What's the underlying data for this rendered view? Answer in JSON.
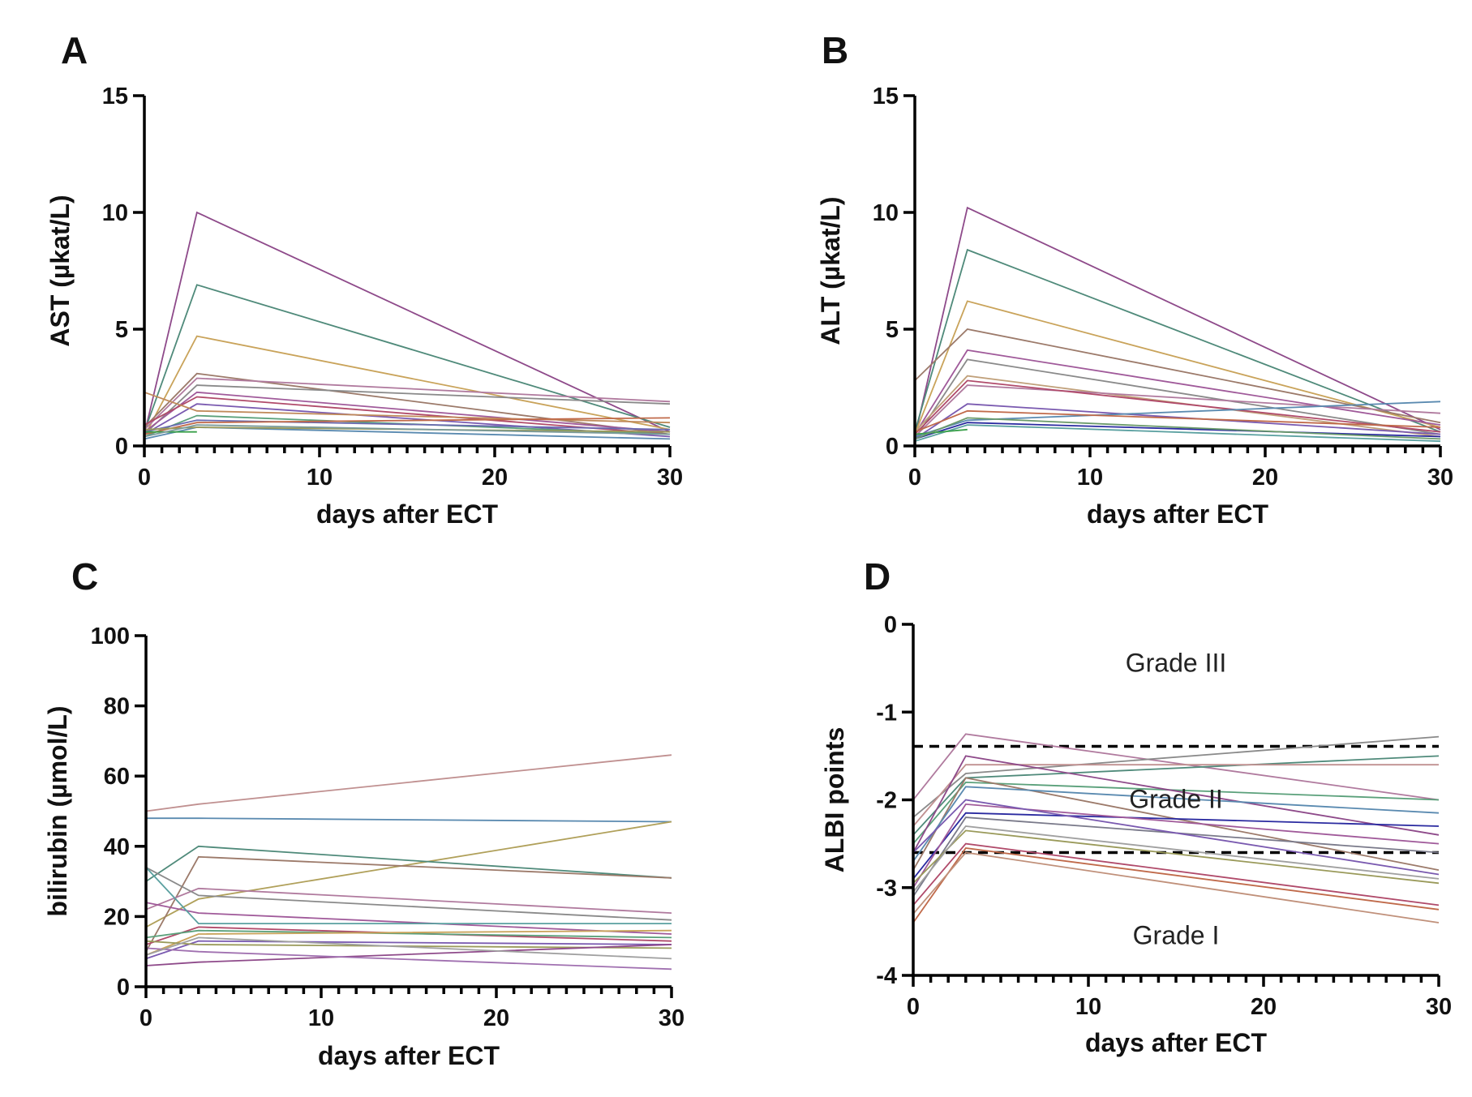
{
  "chart_data": [
    {
      "panel": "A",
      "type": "line",
      "xlabel": "days after ECT",
      "ylabel": "AST (µkat/L)",
      "xlim": [
        0,
        30
      ],
      "ylim": [
        0,
        15
      ],
      "x_ticks": [
        0,
        10,
        20,
        30
      ],
      "y_ticks": [
        0,
        5,
        10,
        15
      ],
      "x": [
        0,
        3,
        30
      ],
      "series": [
        {
          "color": "#8e4a8a",
          "values": [
            0.5,
            10.0,
            0.6
          ]
        },
        {
          "color": "#4f8a7a",
          "values": [
            0.6,
            6.9,
            0.8
          ]
        },
        {
          "color": "#c9a35a",
          "values": [
            0.4,
            4.7,
            0.7
          ]
        },
        {
          "color": "#9c7a6a",
          "values": [
            0.8,
            3.1,
            0.5
          ]
        },
        {
          "color": "#b07a9e",
          "values": [
            0.7,
            2.9,
            1.9
          ]
        },
        {
          "color": "#8a8a8a",
          "values": [
            0.5,
            2.6,
            1.8
          ]
        },
        {
          "color": "#a05a9a",
          "values": [
            0.6,
            2.3,
            0.6
          ]
        },
        {
          "color": "#b04a6a",
          "values": [
            0.9,
            2.1,
            0.5
          ]
        },
        {
          "color": "#7a5ab0",
          "values": [
            0.5,
            1.8,
            0.4
          ]
        },
        {
          "color": "#c08a5a",
          "values": [
            2.3,
            1.5,
            1.0
          ]
        },
        {
          "color": "#5aa07a",
          "values": [
            0.4,
            1.3,
            0.5
          ]
        },
        {
          "color": "#6a6ab0",
          "values": [
            0.6,
            1.1,
            0.7
          ]
        },
        {
          "color": "#c06a4a",
          "values": [
            0.5,
            1.0,
            1.2
          ]
        },
        {
          "color": "#5a8ab0",
          "values": [
            0.3,
            0.8,
            0.3
          ]
        },
        {
          "color": "#9a9a5a",
          "values": [
            0.7,
            0.8,
            0.6
          ]
        },
        {
          "color": "#3aa04a",
          "values": [
            0.6,
            0.6,
            null
          ]
        },
        {
          "color": "#7a9a9a",
          "values": [
            0.4,
            0.9,
            0.5
          ]
        }
      ]
    },
    {
      "panel": "B",
      "type": "line",
      "xlabel": "days after ECT",
      "ylabel": "ALT (µkat/L)",
      "xlim": [
        0,
        30
      ],
      "ylim": [
        0,
        15
      ],
      "x_ticks": [
        0,
        10,
        20,
        30
      ],
      "y_ticks": [
        0,
        5,
        10,
        15
      ],
      "x": [
        0,
        3,
        30
      ],
      "series": [
        {
          "color": "#8e4a8a",
          "values": [
            0.4,
            10.2,
            0.7
          ]
        },
        {
          "color": "#4f8a7a",
          "values": [
            0.6,
            8.4,
            0.6
          ]
        },
        {
          "color": "#c9a35a",
          "values": [
            0.5,
            6.2,
            0.8
          ]
        },
        {
          "color": "#9c7a6a",
          "values": [
            2.8,
            5.0,
            1.0
          ]
        },
        {
          "color": "#a05a9a",
          "values": [
            0.5,
            4.1,
            0.9
          ]
        },
        {
          "color": "#8a8a8a",
          "values": [
            0.3,
            3.7,
            0.5
          ]
        },
        {
          "color": "#c0a07a",
          "values": [
            0.6,
            3.0,
            0.4
          ]
        },
        {
          "color": "#b07a9e",
          "values": [
            0.4,
            2.6,
            1.4
          ]
        },
        {
          "color": "#b04a6a",
          "values": [
            0.5,
            2.8,
            0.6
          ]
        },
        {
          "color": "#7a5ab0",
          "values": [
            0.3,
            1.8,
            0.5
          ]
        },
        {
          "color": "#5a8ab0",
          "values": [
            0.4,
            1.1,
            1.9
          ]
        },
        {
          "color": "#2a2aa0",
          "values": [
            0.3,
            1.0,
            0.4
          ]
        },
        {
          "color": "#5aa0a0",
          "values": [
            0.2,
            0.9,
            0.2
          ]
        },
        {
          "color": "#3aa04a",
          "values": [
            0.5,
            0.7,
            null
          ]
        },
        {
          "color": "#c06a4a",
          "values": [
            0.6,
            1.5,
            0.8
          ]
        },
        {
          "color": "#6a9a6a",
          "values": [
            0.3,
            1.2,
            0.3
          ]
        }
      ]
    },
    {
      "panel": "C",
      "type": "line",
      "xlabel": "days after ECT",
      "ylabel": "bilirubin (µmol/L)",
      "xlim": [
        0,
        30
      ],
      "ylim": [
        0,
        100
      ],
      "x_ticks": [
        0,
        10,
        20,
        30
      ],
      "y_ticks": [
        0,
        20,
        40,
        60,
        80,
        100
      ],
      "x": [
        0,
        3,
        30
      ],
      "series": [
        {
          "color": "#c09090",
          "values": [
            50,
            52,
            66
          ]
        },
        {
          "color": "#5a8ab0",
          "values": [
            48,
            48,
            47
          ]
        },
        {
          "color": "#b0a05a",
          "values": [
            17,
            25,
            47
          ]
        },
        {
          "color": "#4f8a7a",
          "values": [
            30,
            40,
            31
          ]
        },
        {
          "color": "#9c7a6a",
          "values": [
            10,
            37,
            31
          ]
        },
        {
          "color": "#b07a9e",
          "values": [
            22,
            28,
            21
          ]
        },
        {
          "color": "#8a8a8a",
          "values": [
            34,
            26,
            19
          ]
        },
        {
          "color": "#a05a9a",
          "values": [
            24,
            21,
            15
          ]
        },
        {
          "color": "#5aa0a0",
          "values": [
            34,
            18,
            18
          ]
        },
        {
          "color": "#b04a6a",
          "values": [
            12,
            17,
            13
          ]
        },
        {
          "color": "#5aa07a",
          "values": [
            14,
            16,
            14
          ]
        },
        {
          "color": "#c9a35a",
          "values": [
            9,
            15,
            16
          ]
        },
        {
          "color": "#7a5ab0",
          "values": [
            8,
            13,
            12
          ]
        },
        {
          "color": "#9a9a5a",
          "values": [
            13,
            12,
            11
          ]
        },
        {
          "color": "#8e4a8a",
          "values": [
            6,
            7,
            12
          ]
        },
        {
          "color": "#a070b0",
          "values": [
            11,
            10,
            5
          ]
        },
        {
          "color": "#a0a0a0",
          "values": [
            9,
            14,
            8
          ]
        }
      ]
    },
    {
      "panel": "D",
      "type": "line",
      "xlabel": "days after ECT",
      "ylabel": "ALBI points",
      "xlim": [
        0,
        30
      ],
      "ylim": [
        -4,
        0
      ],
      "x_ticks": [
        0,
        10,
        20,
        30
      ],
      "y_ticks": [
        0,
        -1,
        -2,
        -3,
        -4
      ],
      "x": [
        0,
        3,
        30
      ],
      "thresholds": [
        -1.39,
        -2.6
      ],
      "annotations": [
        "Grade III",
        "Grade II",
        "Grade I"
      ],
      "series": [
        {
          "color": "#b07a9e",
          "values": [
            -2.0,
            -1.25,
            -2.0
          ]
        },
        {
          "color": "#8a8a8a",
          "values": [
            -2.2,
            -1.7,
            -1.28
          ]
        },
        {
          "color": "#4f8a7a",
          "values": [
            -2.4,
            -1.75,
            -1.5
          ]
        },
        {
          "color": "#c09090",
          "values": [
            -2.3,
            -1.6,
            -1.6
          ]
        },
        {
          "color": "#5aa07a",
          "values": [
            -2.5,
            -1.8,
            -2.0
          ]
        },
        {
          "color": "#8e4a8a",
          "values": [
            -2.6,
            -1.5,
            -2.4
          ]
        },
        {
          "color": "#9c7a6a",
          "values": [
            -2.8,
            -1.75,
            -2.8
          ]
        },
        {
          "color": "#5a8ab0",
          "values": [
            -2.7,
            -1.85,
            -2.15
          ]
        },
        {
          "color": "#2a2aa0",
          "values": [
            -2.9,
            -2.15,
            -2.3
          ]
        },
        {
          "color": "#a05a9a",
          "values": [
            -3.0,
            -2.05,
            -2.5
          ]
        },
        {
          "color": "#7a7a8a",
          "values": [
            -3.1,
            -2.2,
            -2.6
          ]
        },
        {
          "color": "#b04a6a",
          "values": [
            -3.2,
            -2.5,
            -3.2
          ]
        },
        {
          "color": "#c06a4a",
          "values": [
            -3.4,
            -2.55,
            -3.25
          ]
        },
        {
          "color": "#c0907a",
          "values": [
            -3.3,
            -2.6,
            -3.4
          ]
        },
        {
          "color": "#9a9a5a",
          "values": [
            -2.95,
            -2.35,
            -2.95
          ]
        },
        {
          "color": "#7a5ab0",
          "values": [
            -2.6,
            -2.0,
            -2.85
          ]
        },
        {
          "color": "#a0a0a0",
          "values": [
            -3.05,
            -2.3,
            -2.9
          ]
        }
      ]
    }
  ]
}
